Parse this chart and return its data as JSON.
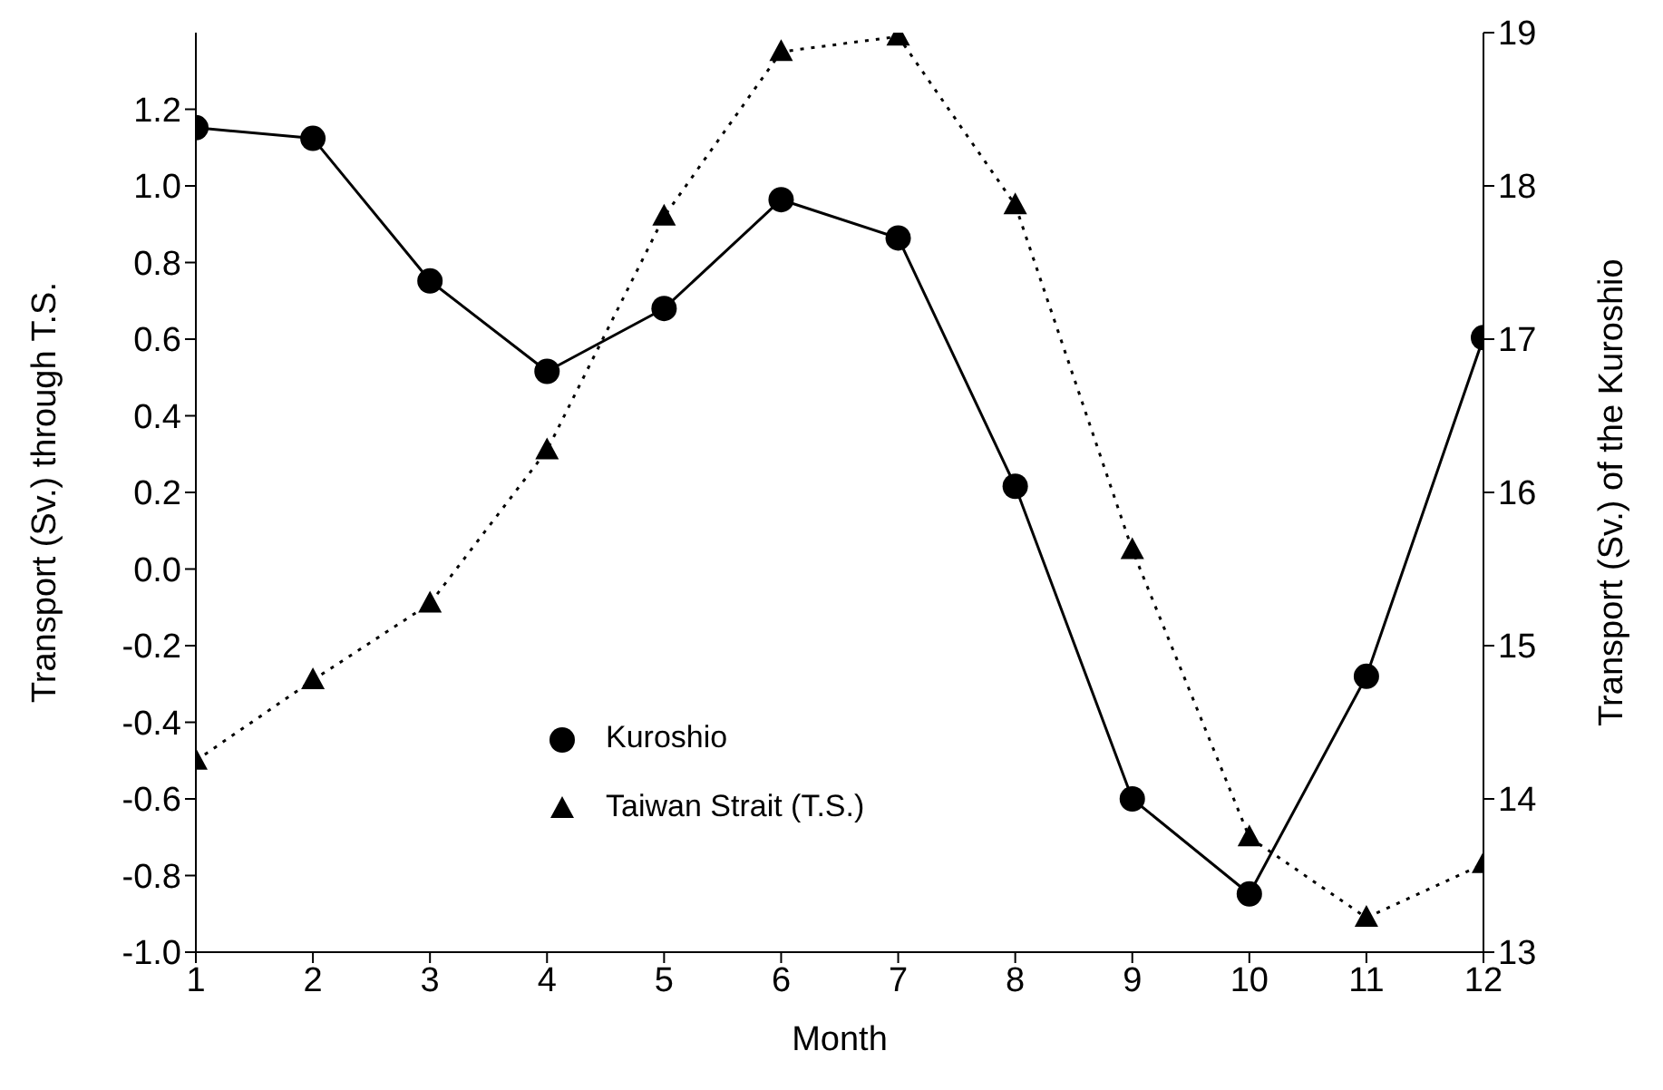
{
  "chart_data": {
    "type": "line",
    "xlabel": "Month",
    "ylabel": "Transport (Sv.) through T.S.",
    "y2label": "Transport (Sv.) of the Kuroshio",
    "x": [
      1,
      2,
      3,
      4,
      5,
      6,
      7,
      8,
      9,
      10,
      11,
      12
    ],
    "xlim": [
      1,
      12
    ],
    "xticks": [
      1,
      2,
      3,
      4,
      5,
      6,
      7,
      8,
      9,
      10,
      11,
      12
    ],
    "ylim": [
      -1.0,
      1.4
    ],
    "yticks": [
      {
        "value": -1.0,
        "label": "-1.0"
      },
      {
        "value": -0.8,
        "label": "-0.8"
      },
      {
        "value": -0.6,
        "label": "-0.6"
      },
      {
        "value": -0.4,
        "label": "-0.4"
      },
      {
        "value": -0.2,
        "label": "-0.2"
      },
      {
        "value": 0,
        "label": "0.0"
      },
      {
        "value": 0.2,
        "label": "0.2"
      },
      {
        "value": 0.4,
        "label": "0.4"
      },
      {
        "value": 0.6,
        "label": "0.6"
      },
      {
        "value": 0.8,
        "label": "0.8"
      },
      {
        "value": 1.0,
        "label": "1.0"
      },
      {
        "value": 1.2,
        "label": "1.2"
      }
    ],
    "y2lim": [
      13,
      19
    ],
    "y2ticks": [
      13,
      14,
      15,
      16,
      17,
      18,
      19
    ],
    "grid": false,
    "legend": "bottom left",
    "series": [
      {
        "name": "Kuroshio",
        "color": "#000000",
        "axis": "y2",
        "marker": "circle",
        "line_style": "solid",
        "values": [
          18.38,
          18.31,
          17.38,
          16.79,
          17.2,
          17.91,
          17.66,
          16.04,
          14.0,
          13.38,
          14.8,
          17.01
        ]
      },
      {
        "name": "Taiwan Strait (T.S.)",
        "color": "#000000",
        "axis": "y",
        "marker": "triangle",
        "line_style": "dotted",
        "values": [
          -0.5,
          -0.29,
          -0.09,
          0.31,
          0.92,
          1.35,
          1.39,
          0.95,
          0.05,
          -0.7,
          -0.91,
          -0.77
        ]
      }
    ]
  }
}
